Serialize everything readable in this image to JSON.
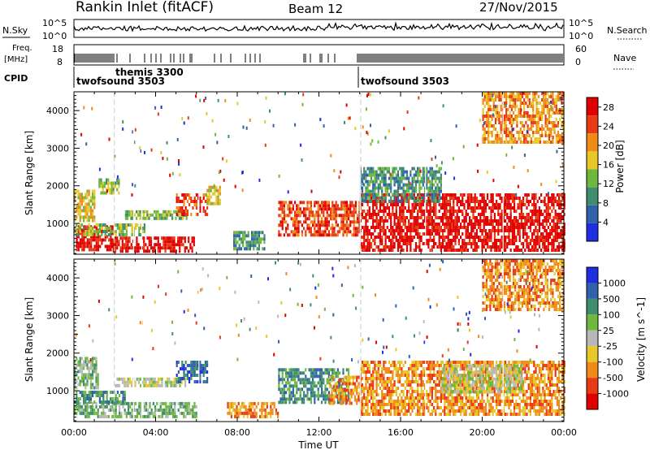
{
  "header": {
    "station": "Rankin Inlet (fitACF)",
    "beam": "Beam 12",
    "date": "27/Nov/2015"
  },
  "summary": {
    "nsky_label": "N.Sky",
    "nsky_ticks": [
      "10^5",
      "10^0"
    ],
    "nsearch_label": "N.Search",
    "nsearch_ticks": [
      "10^5",
      "10^0"
    ],
    "freq_label": [
      "Freq.",
      "[MHz]"
    ],
    "freq_ticks": [
      "18",
      "8"
    ],
    "nave_label": "Nave",
    "nave_ticks": [
      "60",
      "0"
    ],
    "cpid_label": "CPID",
    "cpid_modes": [
      {
        "name": "twofsound 3503",
        "start_hr": 0.0,
        "end_hr": 1.98
      },
      {
        "name": "themis 3300",
        "start_hr": 1.98,
        "end_hr": 2.05
      },
      {
        "name": "twofsound 3503",
        "start_hr": 14.05,
        "end_hr": 24.0
      }
    ]
  },
  "chart_data": [
    {
      "type": "heatmap",
      "title": "",
      "xlabel": "",
      "ylabel": "Slant Range [km]",
      "xlim": [
        0,
        24
      ],
      "ylim": [
        180,
        4500
      ],
      "x_ticks": [
        "00:00",
        "04:00",
        "08:00",
        "12:00",
        "16:00",
        "20:00",
        "00:00"
      ],
      "y_ticks": [
        1000,
        2000,
        3000,
        4000
      ],
      "colorbar_label": "Power [dB]",
      "colorbar_ticks": [
        "4",
        "8",
        "12",
        "16",
        "20",
        "24",
        "28"
      ],
      "colorbar_range": [
        0,
        30
      ],
      "colors": [
        "#1f2ee0",
        "#2f62a8",
        "#3f8f6e",
        "#6fb83e",
        "#e8c828",
        "#f08a18",
        "#e83a14",
        "#e00000"
      ],
      "regions": [
        {
          "t0": 0.1,
          "t1": 1.9,
          "r0": 300,
          "r1": 950,
          "value": 28
        },
        {
          "t0": 1.9,
          "t1": 5.9,
          "r0": 300,
          "r1": 650,
          "value": 29
        },
        {
          "t0": 0.0,
          "t1": 3.5,
          "r0": 700,
          "r1": 1000,
          "value": 14
        },
        {
          "t0": 0.0,
          "t1": 1.0,
          "r0": 1100,
          "r1": 1900,
          "value": 16
        },
        {
          "t0": 2.5,
          "t1": 5.5,
          "r0": 1150,
          "r1": 1350,
          "value": 12
        },
        {
          "t0": 5.0,
          "t1": 6.5,
          "r0": 1200,
          "r1": 1800,
          "value": 26
        },
        {
          "t0": 6.5,
          "t1": 7.2,
          "r0": 1500,
          "r1": 2000,
          "value": 17
        },
        {
          "t0": 1.2,
          "t1": 2.2,
          "r0": 1800,
          "r1": 2200,
          "value": 13
        },
        {
          "t0": 7.8,
          "t1": 9.3,
          "r0": 300,
          "r1": 800,
          "value": 10
        },
        {
          "t0": 10.0,
          "t1": 14.0,
          "r0": 700,
          "r1": 1600,
          "value": 26
        },
        {
          "t0": 14.0,
          "t1": 24.0,
          "r0": 300,
          "r1": 1800,
          "value": 27
        },
        {
          "t0": 14.0,
          "t1": 18.0,
          "r0": 1600,
          "r1": 2500,
          "value": 9
        },
        {
          "t0": 20.0,
          "t1": 24.0,
          "r0": 3200,
          "r1": 4500,
          "value": 20
        }
      ]
    },
    {
      "type": "heatmap",
      "title": "",
      "xlabel": "Time UT",
      "ylabel": "Slant Range [km]",
      "xlim": [
        0,
        24
      ],
      "ylim": [
        180,
        4500
      ],
      "x_ticks": [
        "00:00",
        "04:00",
        "08:00",
        "12:00",
        "16:00",
        "20:00",
        "00:00"
      ],
      "y_ticks": [
        1000,
        2000,
        3000,
        4000
      ],
      "colorbar_label": "Velocity [m s^-1]",
      "colorbar_ticks": [
        "1000",
        "500",
        "100",
        "25",
        "-25",
        "-100",
        "-500",
        "-1000"
      ],
      "colors": [
        "#1f2ee0",
        "#2f62a8",
        "#3f8f6e",
        "#6fb83e",
        "#b8b8b8",
        "#e8c828",
        "#f08a18",
        "#e83a14",
        "#e00000"
      ],
      "regions": [
        {
          "t0": 0.0,
          "t1": 6.0,
          "r0": 300,
          "r1": 700,
          "value": 60
        },
        {
          "t0": 0.0,
          "t1": 2.5,
          "r0": 700,
          "r1": 1000,
          "value": 120
        },
        {
          "t0": 2.0,
          "t1": 5.5,
          "r0": 1150,
          "r1": 1350,
          "value": 0
        },
        {
          "t0": 0.0,
          "t1": 1.2,
          "r0": 1100,
          "r1": 1900,
          "value": 90
        },
        {
          "t0": 5.0,
          "t1": 6.5,
          "r0": 1200,
          "r1": 1800,
          "value": 600
        },
        {
          "t0": 7.5,
          "t1": 10.0,
          "r0": 300,
          "r1": 700,
          "value": -200
        },
        {
          "t0": 10.0,
          "t1": 13.5,
          "r0": 700,
          "r1": 1600,
          "value": 300
        },
        {
          "t0": 12.5,
          "t1": 14.0,
          "r0": 700,
          "r1": 1400,
          "value": -300
        },
        {
          "t0": 14.0,
          "t1": 24.0,
          "r0": 400,
          "r1": 1800,
          "value": -300
        },
        {
          "t0": 18.0,
          "t1": 22.0,
          "r0": 1000,
          "r1": 1700,
          "value": 0
        },
        {
          "t0": 20.0,
          "t1": 24.0,
          "r0": 3200,
          "r1": 4500,
          "value": -200
        }
      ]
    }
  ]
}
